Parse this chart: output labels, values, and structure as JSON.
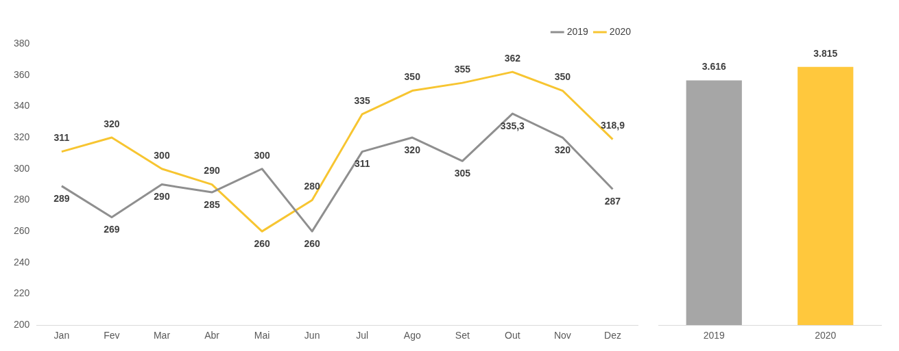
{
  "chart_data": [
    {
      "type": "line",
      "categories": [
        "Jan",
        "Fev",
        "Mar",
        "Abr",
        "Mai",
        "Jun",
        "Jul",
        "Ago",
        "Set",
        "Out",
        "Nov",
        "Dez"
      ],
      "series": [
        {
          "name": "2019",
          "color": "#8f8f8f",
          "values": [
            289,
            269,
            290,
            285,
            300,
            260,
            311,
            320,
            305,
            335.3,
            320,
            287
          ],
          "value_labels": [
            "289",
            "269",
            "290",
            "285",
            "300",
            "260",
            "311",
            "320",
            "305",
            "335,3",
            "320",
            "287"
          ]
        },
        {
          "name": "2020",
          "color": "#f7c531",
          "values": [
            311,
            320,
            300,
            290,
            260,
            280,
            335,
            350,
            355,
            362,
            350,
            318.9
          ],
          "value_labels": [
            "311",
            "320",
            "300",
            "290",
            "260",
            "280",
            "335",
            "350",
            "355",
            "362",
            "350",
            "318,9"
          ]
        }
      ],
      "ylim": [
        200,
        380
      ],
      "yticks": [
        200,
        220,
        240,
        260,
        280,
        300,
        320,
        340,
        360,
        380
      ],
      "legend": "top right",
      "marker": "none",
      "grid": false
    },
    {
      "type": "bar",
      "categories": [
        "2019",
        "2020"
      ],
      "values": [
        3616,
        3815
      ],
      "colors": [
        "#a6a6a6",
        "#ffc83d"
      ],
      "value_labels": [
        "3.616",
        "3.815"
      ],
      "tick_labels": "x",
      "legend": false
    }
  ]
}
